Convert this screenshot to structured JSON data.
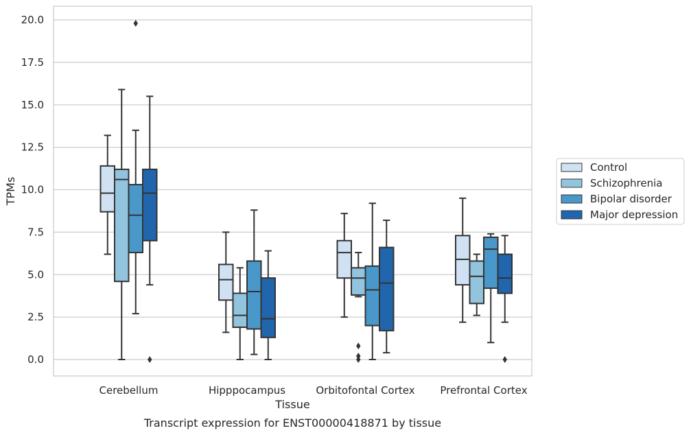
{
  "caption": "Transcript expression for ENST00000418871 by tissue",
  "chart_data": {
    "type": "box",
    "xlabel": "Tissue",
    "ylabel": "TPMs",
    "ylim": [
      -1,
      20.8
    ],
    "yticks": [
      0.0,
      2.5,
      5.0,
      7.5,
      10.0,
      12.5,
      15.0,
      17.5,
      20.0
    ],
    "ytick_labels": [
      "0.0",
      "2.5",
      "5.0",
      "7.5",
      "10.0",
      "12.5",
      "15.0",
      "17.5",
      "20.0"
    ],
    "grid": "horizontal",
    "legend_position": "right",
    "categories": [
      "Cerebellum",
      "Hipppocampus",
      "Orbitofontal Cortex",
      "Prefrontal Cortex"
    ],
    "series": [
      {
        "name": "Control",
        "color": "#cfe1f2",
        "boxes": [
          {
            "whisker_low": 6.2,
            "q1": 8.7,
            "median": 9.8,
            "q3": 11.4,
            "whisker_high": 13.2,
            "outliers": []
          },
          {
            "whisker_low": 1.6,
            "q1": 3.5,
            "median": 4.7,
            "q3": 5.6,
            "whisker_high": 7.5,
            "outliers": []
          },
          {
            "whisker_low": 2.5,
            "q1": 4.8,
            "median": 6.3,
            "q3": 7.0,
            "whisker_high": 8.6,
            "outliers": []
          },
          {
            "whisker_low": 2.2,
            "q1": 4.4,
            "median": 5.9,
            "q3": 7.3,
            "whisker_high": 9.5,
            "outliers": []
          }
        ]
      },
      {
        "name": "Schizophrenia",
        "color": "#93c4de",
        "boxes": [
          {
            "whisker_low": 0.0,
            "q1": 4.6,
            "median": 10.6,
            "q3": 11.2,
            "whisker_high": 15.9,
            "outliers": []
          },
          {
            "whisker_low": 0.0,
            "q1": 1.9,
            "median": 2.6,
            "q3": 3.9,
            "whisker_high": 5.4,
            "outliers": []
          },
          {
            "whisker_low": 3.7,
            "q1": 3.8,
            "median": 4.8,
            "q3": 5.4,
            "whisker_high": 6.3,
            "outliers": [
              0.8,
              0.2,
              0.0
            ]
          },
          {
            "whisker_low": 2.6,
            "q1": 3.3,
            "median": 4.9,
            "q3": 5.8,
            "whisker_high": 6.2,
            "outliers": []
          }
        ]
      },
      {
        "name": "Bipolar disorder",
        "color": "#4a98c9",
        "boxes": [
          {
            "whisker_low": 2.7,
            "q1": 6.3,
            "median": 8.5,
            "q3": 10.3,
            "whisker_high": 13.5,
            "outliers": [
              19.8
            ]
          },
          {
            "whisker_low": 0.3,
            "q1": 1.8,
            "median": 4.0,
            "q3": 5.8,
            "whisker_high": 8.8,
            "outliers": []
          },
          {
            "whisker_low": 0.0,
            "q1": 2.0,
            "median": 4.1,
            "q3": 5.5,
            "whisker_high": 9.2,
            "outliers": []
          },
          {
            "whisker_low": 1.0,
            "q1": 4.2,
            "median": 6.5,
            "q3": 7.2,
            "whisker_high": 7.4,
            "outliers": []
          }
        ]
      },
      {
        "name": "Major depression",
        "color": "#2166ac",
        "boxes": [
          {
            "whisker_low": 4.4,
            "q1": 7.0,
            "median": 9.8,
            "q3": 11.2,
            "whisker_high": 15.5,
            "outliers": [
              0.0
            ]
          },
          {
            "whisker_low": 0.0,
            "q1": 1.3,
            "median": 2.4,
            "q3": 4.8,
            "whisker_high": 6.4,
            "outliers": []
          },
          {
            "whisker_low": 0.4,
            "q1": 1.7,
            "median": 4.5,
            "q3": 6.6,
            "whisker_high": 8.2,
            "outliers": []
          },
          {
            "whisker_low": 2.2,
            "q1": 3.9,
            "median": 4.8,
            "q3": 6.2,
            "whisker_high": 7.3,
            "outliers": [
              0.0
            ]
          }
        ]
      }
    ]
  }
}
